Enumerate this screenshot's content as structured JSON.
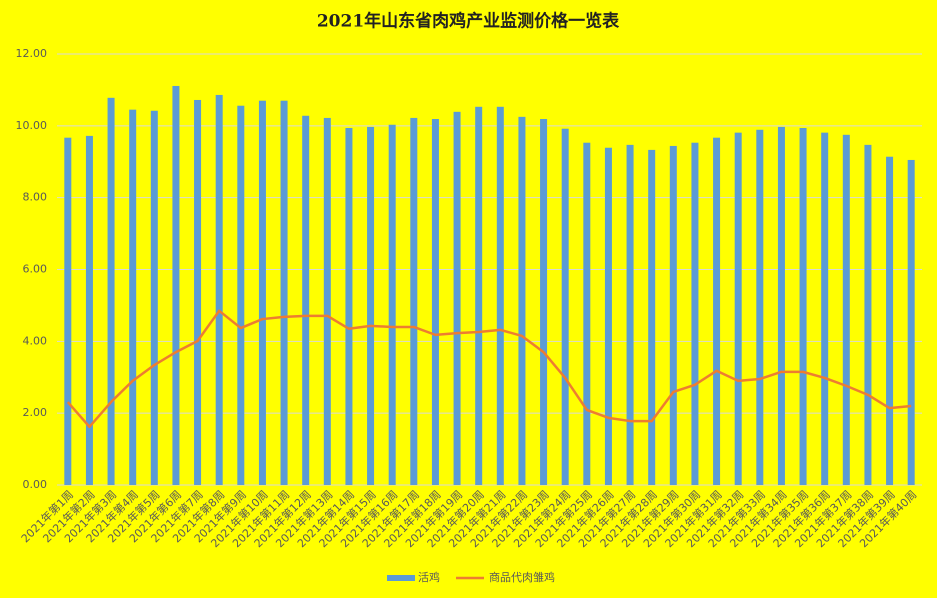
{
  "chart_data": {
    "type": "bar",
    "title": "2021年山东省肉鸡产业监测价格一览表",
    "categories": [
      "2021年第1周",
      "2021年第2周",
      "2021年第3周",
      "2021年第4周",
      "2021年第5周",
      "2021年第6周",
      "2021年第7周",
      "2021年第8周",
      "2021年第9周",
      "2021年第10周",
      "2021年第11周",
      "2021年第12周",
      "2021年第13周",
      "2021年第14周",
      "2021年第15周",
      "2021年第16周",
      "2021年第17周",
      "2021年第18周",
      "2021年第19周",
      "2021年第20周",
      "2021年第21周",
      "2021年第22周",
      "2021年第23周",
      "2021年第24周",
      "2021年第25周",
      "2021年第26周",
      "2021年第27周",
      "2021年第28周",
      "2021年第29周",
      "2021年第30周",
      "2021年第31周",
      "2021年第32周",
      "2021年第33周",
      "2021年第34周",
      "2021年第35周",
      "2021年第36周",
      "2021年第37周",
      "2021年第38周",
      "2021年第39周",
      "2021年第40周"
    ],
    "series": [
      {
        "name": "活鸡",
        "type": "bar",
        "color": "#5b9bd5",
        "values": [
          9.67,
          9.72,
          10.78,
          10.45,
          10.42,
          11.11,
          10.72,
          10.86,
          10.56,
          10.7,
          10.7,
          10.28,
          10.22,
          9.94,
          9.97,
          10.03,
          10.22,
          10.19,
          10.39,
          10.53,
          10.53,
          10.25,
          10.19,
          9.92,
          9.53,
          9.39,
          9.47,
          9.33,
          9.44,
          9.53,
          9.67,
          9.81,
          9.89,
          9.97,
          9.94,
          9.81,
          9.75,
          9.47,
          9.14,
          9.05
        ]
      },
      {
        "name": "商品代肉雏鸡",
        "type": "line",
        "color": "#ed7d31",
        "values": [
          2.31,
          1.62,
          2.31,
          2.9,
          3.34,
          3.7,
          4.01,
          4.85,
          4.37,
          4.62,
          4.68,
          4.71,
          4.71,
          4.35,
          4.43,
          4.4,
          4.4,
          4.18,
          4.23,
          4.26,
          4.32,
          4.15,
          3.7,
          2.98,
          2.09,
          1.87,
          1.78,
          1.78,
          2.59,
          2.79,
          3.18,
          2.9,
          2.95,
          3.15,
          3.15,
          2.98,
          2.76,
          2.51,
          2.14,
          2.2
        ]
      }
    ],
    "ylim": [
      0,
      12
    ],
    "yticks": [
      {
        "value": 0,
        "label": "0.00"
      },
      {
        "value": 2,
        "label": "2.00"
      },
      {
        "value": 4,
        "label": "4.00"
      },
      {
        "value": 6,
        "label": "6.00"
      },
      {
        "value": 8,
        "label": "8.00"
      },
      {
        "value": 10,
        "label": "10.00"
      },
      {
        "value": 12,
        "label": "12.00"
      }
    ],
    "grid": true,
    "legend": "bottom"
  }
}
